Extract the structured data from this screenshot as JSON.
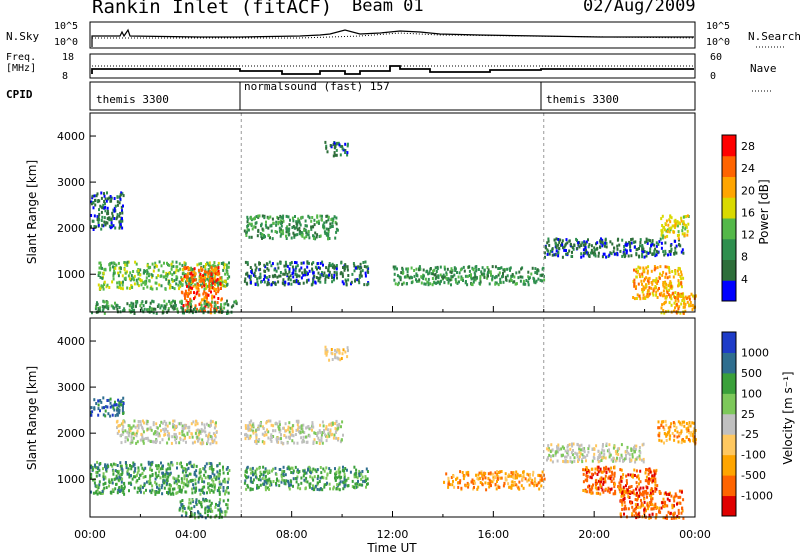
{
  "header": {
    "title": "Rankin Inlet (fitACF)",
    "beam": "Beam 01",
    "date": "02/Aug/2009"
  },
  "top_panels": {
    "nsky_label": "N.Sky",
    "nsearch_label": "N.Search",
    "nsky_ticks": [
      "10^5",
      "10^0"
    ],
    "freq_label_1": "Freq.",
    "freq_label_2": "[MHz]",
    "freq_ticks": [
      "18",
      "8"
    ],
    "nave_label": "Nave",
    "nave_ticks": [
      "60",
      "0"
    ],
    "cpid_label": "CPID",
    "cpid_segments": [
      {
        "label": "themis 3300",
        "start_hour": 0
      },
      {
        "label": "normalsound (fast) 157",
        "start_hour": 6
      },
      {
        "label": "themis 3300",
        "start_hour": 18
      }
    ]
  },
  "colors": {
    "power_scale": [
      "#0000ff",
      "#2e6e3a",
      "#2f8f4f",
      "#54b849",
      "#d9d900",
      "#ffa500",
      "#ff6400",
      "#ff0000"
    ],
    "velocity_scale": [
      "#e00000",
      "#ff6400",
      "#ffa500",
      "#ffc860",
      "#c0c0c0",
      "#7dc85a",
      "#3aa03a",
      "#2f6e8f",
      "#1e3cc8"
    ]
  },
  "chart_data": [
    {
      "type": "heatmap",
      "name": "power",
      "ylabel": "Slant Range [km]",
      "xlabel": "",
      "x_ticks": [
        "00:00",
        "04:00",
        "08:00",
        "12:00",
        "16:00",
        "20:00",
        "00:00"
      ],
      "x_range_hours": [
        0,
        24
      ],
      "y_ticks": [
        1000,
        2000,
        3000,
        4000
      ],
      "y_range_km": [
        180,
        4500
      ],
      "colorbar_label": "Power [dB]",
      "colorbar_ticks": [
        4,
        8,
        12,
        16,
        20,
        24,
        28
      ],
      "colorbar_range": [
        0,
        30
      ],
      "regions": [
        {
          "hours": [
            0.0,
            1.3
          ],
          "km": [
            2000,
            2800
          ],
          "level": 1
        },
        {
          "hours": [
            0.3,
            5.5
          ],
          "km": [
            700,
            1300
          ],
          "level": 3
        },
        {
          "hours": [
            3.6,
            5.2
          ],
          "km": [
            180,
            1200
          ],
          "level": 6
        },
        {
          "hours": [
            0.0,
            5.8
          ],
          "km": [
            180,
            450
          ],
          "level": 2
        },
        {
          "hours": [
            6.1,
            9.8
          ],
          "km": [
            1800,
            2300
          ],
          "level": 2
        },
        {
          "hours": [
            6.1,
            11.0
          ],
          "km": [
            800,
            1300
          ],
          "level": 1
        },
        {
          "hours": [
            9.3,
            10.2
          ],
          "km": [
            3600,
            3900
          ],
          "level": 1
        },
        {
          "hours": [
            12.0,
            18.0
          ],
          "km": [
            800,
            1200
          ],
          "level": 2
        },
        {
          "hours": [
            18.0,
            23.5
          ],
          "km": [
            1400,
            1800
          ],
          "level": 1
        },
        {
          "hours": [
            21.5,
            23.5
          ],
          "km": [
            500,
            1200
          ],
          "level": 5
        },
        {
          "hours": [
            22.6,
            23.8
          ],
          "km": [
            1800,
            2300
          ],
          "level": 4
        },
        {
          "hours": [
            22.6,
            24.0
          ],
          "km": [
            180,
            600
          ],
          "level": 5
        }
      ]
    },
    {
      "type": "heatmap",
      "name": "velocity",
      "ylabel": "Slant Range [km]",
      "xlabel": "Time UT",
      "x_ticks": [
        "00:00",
        "04:00",
        "08:00",
        "12:00",
        "16:00",
        "20:00",
        "00:00"
      ],
      "x_range_hours": [
        0,
        24
      ],
      "y_ticks": [
        1000,
        2000,
        3000,
        4000
      ],
      "y_range_km": [
        180,
        4500
      ],
      "colorbar_label": "Velocity [m s⁻¹]",
      "colorbar_ticks": [
        1000,
        500,
        100,
        25,
        -25,
        -100,
        -500,
        -1000
      ],
      "regions": [
        {
          "hours": [
            0.0,
            1.3
          ],
          "km": [
            2400,
            2800
          ],
          "level": 7
        },
        {
          "hours": [
            0.0,
            5.5
          ],
          "km": [
            700,
            1400
          ],
          "level": 6
        },
        {
          "hours": [
            1.0,
            5.0
          ],
          "km": [
            1800,
            2300
          ],
          "level": 4
        },
        {
          "hours": [
            3.5,
            5.5
          ],
          "km": [
            180,
            600
          ],
          "level": 6
        },
        {
          "hours": [
            6.1,
            10.0
          ],
          "km": [
            1800,
            2300
          ],
          "level": 4
        },
        {
          "hours": [
            6.1,
            11.0
          ],
          "km": [
            800,
            1300
          ],
          "level": 6
        },
        {
          "hours": [
            9.3,
            10.2
          ],
          "km": [
            3600,
            3900
          ],
          "level": 3
        },
        {
          "hours": [
            14.0,
            18.0
          ],
          "km": [
            800,
            1200
          ],
          "level": 2
        },
        {
          "hours": [
            18.0,
            22.0
          ],
          "km": [
            1400,
            1800
          ],
          "level": 4
        },
        {
          "hours": [
            19.5,
            22.5
          ],
          "km": [
            700,
            1300
          ],
          "level": 1
        },
        {
          "hours": [
            21.0,
            23.5
          ],
          "km": [
            180,
            800
          ],
          "level": 1
        },
        {
          "hours": [
            22.5,
            24.0
          ],
          "km": [
            1800,
            2300
          ],
          "level": 2
        }
      ]
    }
  ]
}
